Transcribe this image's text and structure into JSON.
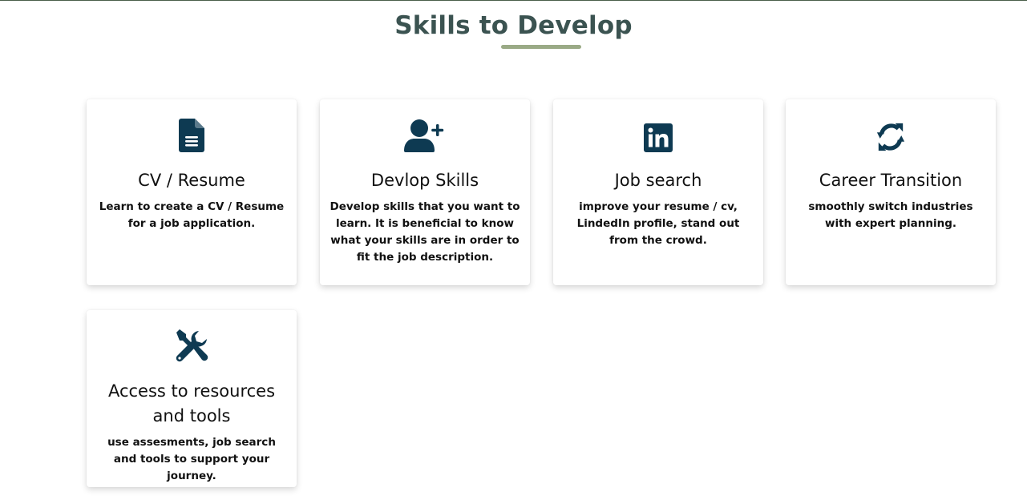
{
  "section": {
    "title": "Skills to Develop"
  },
  "colors": {
    "title": "#3b5351",
    "underline": "#9aaa86",
    "icon": "#0e3a52"
  },
  "cards": [
    {
      "icon": "document-icon",
      "title": "CV / Resume",
      "description": "Learn to create a CV / Resume for a job application."
    },
    {
      "icon": "user-plus-icon",
      "title": "Devlop Skills",
      "description": "Develop skills that you want to learn. It is beneficial to know what your skills are in order to fit the job description."
    },
    {
      "icon": "linkedin-icon",
      "title": "Job search",
      "description": "improve your resume / cv, LindedIn profile, stand out from the crowd."
    },
    {
      "icon": "sync-arrows-icon",
      "title": "Career Transition",
      "description": "smoothly switch industries with expert planning."
    },
    {
      "icon": "tools-icon",
      "title": "Access to resources and tools",
      "description": "use assesments, job search and tools to support your journey."
    }
  ]
}
